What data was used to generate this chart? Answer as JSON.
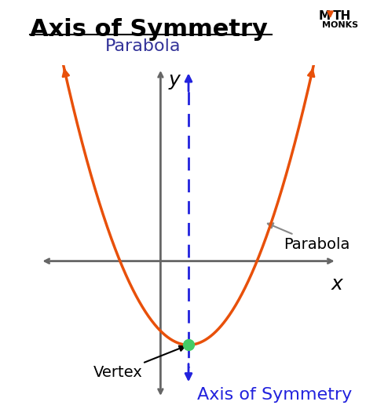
{
  "title": "Axis of Symmetry",
  "subtitle": "Parabola",
  "background_color": "#ffffff",
  "parabola_color": "#e8500a",
  "axis_color": "#666666",
  "dashed_line_color": "#2222dd",
  "vertex_color": "#44cc66",
  "vertex_x": 0.5,
  "vertex_y": -1.5,
  "parabola_a": 1.0,
  "x_range": [
    -2.2,
    3.2
  ],
  "y_range": [
    -2.5,
    3.5
  ],
  "label_parabola": "Parabola",
  "label_vertex": "Vertex",
  "label_axis": "Axis of Symmetry",
  "label_x": "x",
  "label_y": "y",
  "title_fontsize": 22,
  "subtitle_fontsize": 16,
  "subtitle_color": "#333399",
  "axis_label_fontsize": 18,
  "annotation_fontsize": 14,
  "aos_label_color": "#2222dd",
  "aos_label_fontsize": 16
}
